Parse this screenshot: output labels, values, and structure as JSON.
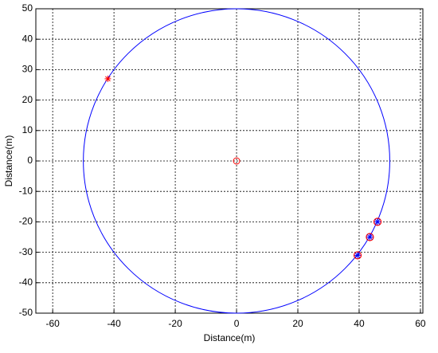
{
  "chart_data": {
    "type": "scatter",
    "xlabel": "Distance(m)",
    "ylabel": "Distance(m)",
    "xlim": [
      -65.5,
      60.8
    ],
    "ylim": [
      -50,
      50
    ],
    "xticks": [
      -60,
      -40,
      -20,
      0,
      20,
      40,
      60
    ],
    "yticks": [
      -50,
      -40,
      -30,
      -20,
      -10,
      0,
      10,
      20,
      30,
      40,
      50
    ],
    "grid": true,
    "circle": {
      "center": [
        0,
        0
      ],
      "radius": 50,
      "color": "#0000ff"
    },
    "series": [
      {
        "color": "#ff0000",
        "marker": "circle",
        "x": [
          0
        ],
        "values": [
          0
        ]
      },
      {
        "color": "#ff0000",
        "marker": "star",
        "x": [
          -42
        ],
        "values": [
          27
        ]
      },
      {
        "color": "#0000ff",
        "edge_color": "#ff0000",
        "marker": "star-in-circle",
        "x": [
          46,
          43.5,
          39.5
        ],
        "values": [
          -20,
          -25,
          -31
        ]
      }
    ]
  }
}
